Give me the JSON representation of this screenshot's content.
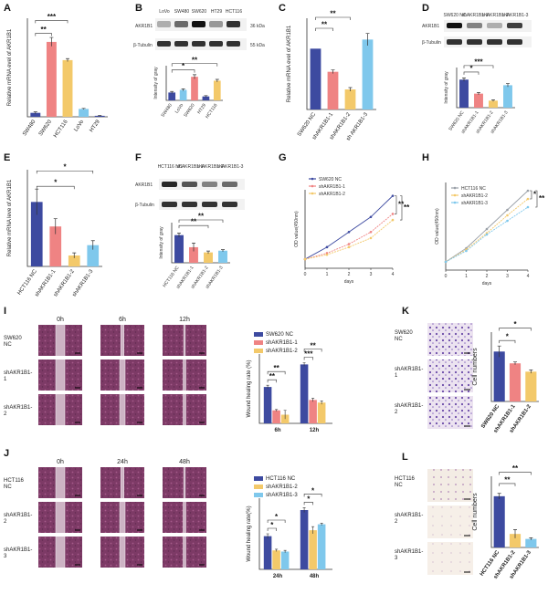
{
  "colors": {
    "navy": "#3d4aa0",
    "salmon": "#ef8383",
    "yellow": "#f3c96a",
    "lightblue": "#7fc8ec",
    "gray": "#9aa0a8",
    "scratch": "#8a3f6e",
    "transwell": "#efe4ea"
  },
  "panels": {
    "A": {
      "label": "A",
      "ylabel": "Relative mRNA  evel of AKR1B1",
      "categories": [
        "SW480",
        "SW620",
        "HCT116",
        "LoVo",
        "HT29"
      ],
      "values": [
        0.8,
        15.2,
        11.5,
        1.6,
        0.2
      ],
      "errors": [
        0.2,
        0.9,
        0.3,
        0.1,
        0.05
      ],
      "colors": [
        "navy",
        "salmon",
        "yellow",
        "lightblue",
        "navy"
      ],
      "ylim": [
        0,
        20
      ],
      "sig": [
        "***",
        "**"
      ]
    },
    "B": {
      "label": "B",
      "lanes": [
        "LoVo",
        "SW480",
        "SW620",
        "HT29",
        "HCT116"
      ],
      "bands": [
        "AKR1B1",
        "β-Tubulin"
      ],
      "kda": [
        "36 kDa",
        "55 kDa"
      ],
      "ylabel": "Intensity of gray",
      "categories": [
        "SW480",
        "LoVo",
        "SW620",
        "HT29",
        "HCT116"
      ],
      "values": [
        0.3,
        0.4,
        0.9,
        0.15,
        0.75
      ],
      "errors": [
        0.04,
        0.04,
        0.08,
        0.03,
        0.05
      ],
      "colors": [
        "navy",
        "lightblue",
        "salmon",
        "navy",
        "yellow"
      ],
      "sig": [
        "**",
        "*"
      ]
    },
    "C": {
      "label": "C",
      "ylabel": "Relative mRNA  evel of AKR1B1",
      "categories": [
        "SW620 NC",
        "shAKR1B1-1",
        "shAKR1B1-2",
        "sh AKR1B1-3"
      ],
      "values": [
        1.0,
        0.62,
        0.33,
        1.15
      ],
      "errors": [
        0.0,
        0.03,
        0.03,
        0.1
      ],
      "colors": [
        "navy",
        "salmon",
        "yellow",
        "lightblue"
      ],
      "ylim": [
        0,
        1.5
      ],
      "sig": [
        "**",
        "**"
      ]
    },
    "D": {
      "label": "D",
      "lanes": [
        "SW620 NC",
        "shAKR1B1-1",
        "shAKR1B1-2",
        "shAKR1B1-3"
      ],
      "bands": [
        "AKR1B1",
        "β-Tubulin"
      ],
      "ylabel": "Intensity of gray",
      "categories": [
        "SW620 NC",
        "shAKR1B1-1",
        "shAKR1B1-2",
        "shAKR1B1-3"
      ],
      "values": [
        1.0,
        0.5,
        0.25,
        0.8
      ],
      "errors": [
        0.06,
        0.04,
        0.03,
        0.06
      ],
      "colors": [
        "navy",
        "salmon",
        "yellow",
        "lightblue"
      ],
      "sig": [
        "***",
        "*"
      ]
    },
    "E": {
      "label": "E",
      "ylabel": "Relative mRNA  leve of AKR1B1",
      "categories": [
        "HCT116 NC",
        "shAKR1B1-1",
        "shAKR1B1-2",
        "shAKR1B1-3"
      ],
      "values": [
        1.0,
        0.62,
        0.17,
        0.33
      ],
      "errors": [
        0.2,
        0.12,
        0.04,
        0.07
      ],
      "colors": [
        "navy",
        "salmon",
        "yellow",
        "lightblue"
      ],
      "ylim": [
        0,
        1.5
      ],
      "sig": [
        "*",
        "*"
      ]
    },
    "F": {
      "label": "F",
      "lanes": [
        "HCT116 NC",
        "shAKR1B1-1",
        "shAKR1B1-2",
        "shAKR1B1-3"
      ],
      "bands": [
        "AKR1B1",
        "β-Tubulin"
      ],
      "ylabel": "Intensity of gray",
      "categories": [
        "HCT116 NC",
        "shAKR1B1-1",
        "shAKR1B1-2",
        "shAKR1B1-3"
      ],
      "values": [
        0.8,
        0.45,
        0.3,
        0.35
      ],
      "errors": [
        0.06,
        0.12,
        0.04,
        0.03
      ],
      "colors": [
        "navy",
        "salmon",
        "yellow",
        "lightblue"
      ],
      "sig": [
        "**",
        "**"
      ]
    },
    "G": {
      "label": "G",
      "ylabel": "OD value(450nm)",
      "xlabel": "days",
      "x": [
        0,
        1,
        2,
        3,
        4
      ],
      "series": [
        {
          "name": "SW620 NC",
          "color": "navy",
          "values": [
            0.3,
            0.7,
            1.2,
            1.7,
            2.4
          ]
        },
        {
          "name": "shAKR1B1-1",
          "color": "salmon",
          "values": [
            0.3,
            0.5,
            0.8,
            1.2,
            1.8
          ]
        },
        {
          "name": "shAKR1B1-2",
          "color": "yellow",
          "values": [
            0.3,
            0.45,
            0.7,
            1.0,
            1.6
          ]
        }
      ],
      "ylim": [
        0,
        2.6
      ],
      "sig": [
        "**",
        "**"
      ]
    },
    "H": {
      "label": "H",
      "ylabel": "OD value(450nm)",
      "xlabel": "days",
      "x": [
        0,
        1,
        2,
        3,
        4
      ],
      "series": [
        {
          "name": "HCT116 NC",
          "color": "gray",
          "values": [
            0.3,
            0.8,
            1.5,
            2.2,
            2.9
          ]
        },
        {
          "name": "shAKR1B1-2",
          "color": "yellow",
          "values": [
            0.3,
            0.75,
            1.35,
            2.0,
            2.6
          ]
        },
        {
          "name": "shAKR1B1-3",
          "color": "lightblue",
          "values": [
            0.3,
            0.7,
            1.3,
            1.8,
            2.3
          ]
        }
      ],
      "ylim": [
        0,
        3.2
      ],
      "sig": [
        "*",
        "**"
      ]
    },
    "I": {
      "label": "I",
      "time_labels": [
        "0h",
        "6h",
        "12h"
      ],
      "row_labels": [
        "SW620\nNC",
        "shAKR1B1-\n1",
        "shAKR1B1-\n2"
      ],
      "ylabel": "Wound healing rate (%)",
      "groups": [
        "6h",
        "12h"
      ],
      "series": [
        {
          "name": "SW620 NC",
          "color": "navy",
          "values": [
            0.42,
            0.68
          ],
          "errors": [
            0.02,
            0.02
          ]
        },
        {
          "name": "shAKR1B1-1",
          "color": "salmon",
          "values": [
            0.15,
            0.27
          ],
          "errors": [
            0.01,
            0.02
          ]
        },
        {
          "name": "shAKR1B1-2",
          "color": "yellow",
          "values": [
            0.1,
            0.24
          ],
          "errors": [
            0.05,
            0.02
          ]
        }
      ],
      "ylim": [
        0,
        0.8
      ],
      "sig": [
        "**",
        "**",
        "***",
        "**"
      ]
    },
    "J": {
      "label": "J",
      "time_labels": [
        "0h",
        "24h",
        "48h"
      ],
      "row_labels": [
        "HCT116\nNC",
        "shAKR1B1-\n2",
        "shAKR1B1-\n3"
      ],
      "ylabel": "Wound healing rate(%)",
      "groups": [
        "24h",
        "48h"
      ],
      "series": [
        {
          "name": "HCT116 NC",
          "color": "navy",
          "values": [
            0.28,
            0.5
          ],
          "errors": [
            0.02,
            0.02
          ]
        },
        {
          "name": "shAKR1B1-2",
          "color": "yellow",
          "values": [
            0.16,
            0.33
          ],
          "errors": [
            0.01,
            0.03
          ]
        },
        {
          "name": "shAKR1B1-3",
          "color": "lightblue",
          "values": [
            0.15,
            0.38
          ],
          "errors": [
            0.01,
            0.01
          ]
        }
      ],
      "ylim": [
        0,
        0.6
      ],
      "sig": [
        "*",
        "*",
        "*",
        "*"
      ]
    },
    "K": {
      "label": "K",
      "row_labels": [
        "SW620\nNC",
        "shAKR1B1-\n1",
        "shAKR1B1-\n2"
      ],
      "ylabel": "Cell numbers",
      "categories": [
        "SW620 NC",
        "shAKR1B1-1",
        "shAKR1B1-2"
      ],
      "values": [
        360,
        275,
        215
      ],
      "errors": [
        40,
        10,
        12
      ],
      "colors": [
        "navy",
        "salmon",
        "yellow"
      ],
      "ylim": [
        0,
        500
      ],
      "sig": [
        "*",
        "*"
      ]
    },
    "L": {
      "label": "L",
      "row_labels": [
        "HCT116\nNC",
        "shAKR1B1-\n2",
        "shAKR1B1-\n3"
      ],
      "ylabel": "Cell numbers",
      "categories": [
        "HCT116 NC",
        "shAKR1B1-2",
        "shAKR1B1-3"
      ],
      "values": [
        360,
        95,
        60
      ],
      "errors": [
        20,
        30,
        8
      ],
      "colors": [
        "navy",
        "yellow",
        "lightblue"
      ],
      "ylim": [
        0,
        500
      ],
      "sig": [
        "**",
        "**"
      ]
    }
  }
}
